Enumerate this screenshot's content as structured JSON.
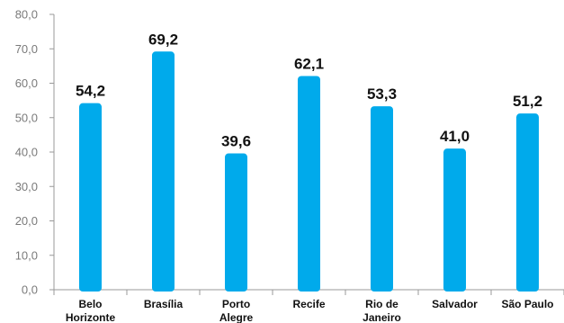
{
  "chart_data": {
    "type": "bar",
    "title": "",
    "xlabel": "",
    "ylabel": "",
    "ylim": [
      0,
      80
    ],
    "grid": false,
    "yticks": [
      "0,0",
      "10,0",
      "20,0",
      "30,0",
      "40,0",
      "50,0",
      "60,0",
      "70,0",
      "80,0"
    ],
    "categories": [
      [
        "Belo",
        "Horizonte"
      ],
      [
        "Brasília"
      ],
      [
        "Porto",
        "Alegre"
      ],
      [
        "Recife"
      ],
      [
        "Rio de",
        "Janeiro"
      ],
      [
        "Salvador"
      ],
      [
        "São Paulo"
      ]
    ],
    "values": [
      54.2,
      69.2,
      39.6,
      62.1,
      53.3,
      41.0,
      51.2
    ],
    "data_labels": [
      "54,2",
      "69,2",
      "39,6",
      "62,1",
      "53,3",
      "41,0",
      "51,2"
    ],
    "bar_color": "#00aaeb",
    "axis_color": "#999999"
  }
}
